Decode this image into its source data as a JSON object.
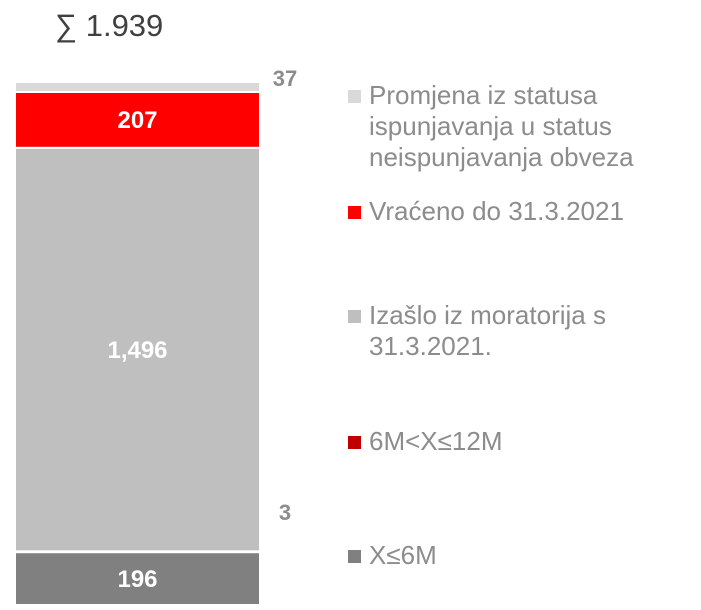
{
  "chart_data": {
    "type": "bar",
    "stacked": true,
    "title": "∑ 1.939",
    "categories": [
      null
    ],
    "series": [
      {
        "name": "X≤6M",
        "color": "#808080",
        "values": [
          196
        ]
      },
      {
        "name": "6M<X≤12M",
        "color": "#c00000",
        "values": [
          3
        ]
      },
      {
        "name": "Izašlo iz moratorija s 31.3.2021.",
        "color": "#bfbfbf",
        "values": [
          1496
        ],
        "value_labels": [
          "1,496"
        ]
      },
      {
        "name": "Vraćeno do 31.3.2021",
        "color": "#ff0000",
        "values": [
          207
        ]
      },
      {
        "name": "Promjena iz statusa ispunjavanja u status neispunjavanja obveza",
        "color": "#d9d9d9",
        "values": [
          37
        ]
      }
    ]
  }
}
